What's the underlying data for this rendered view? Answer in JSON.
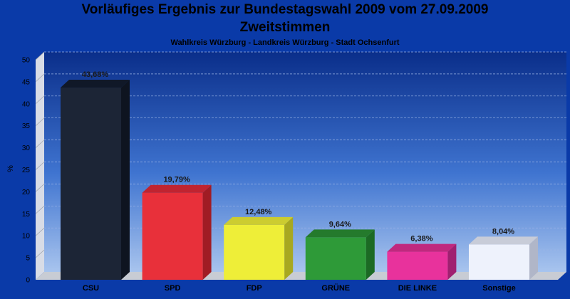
{
  "chart_data": {
    "type": "bar",
    "title": "Vorläufiges Ergebnis zur Bundestagswahl 2009 vom 27.09.2009",
    "title_line2": "Zweitstimmen",
    "subtitle": "Wahlkreis Würzburg - Landkreis Würzburg - Stadt Ochsenfurt",
    "ylabel": "%",
    "ylim": [
      0,
      50
    ],
    "yticks": [
      0,
      5,
      10,
      15,
      20,
      25,
      30,
      35,
      40,
      45,
      50
    ],
    "grid": true,
    "categories": [
      "CSU",
      "SPD",
      "FDP",
      "GRÜNE",
      "DIE LINKE",
      "Sonstige"
    ],
    "values": [
      43.68,
      19.79,
      12.48,
      9.64,
      6.38,
      8.04
    ],
    "value_labels": [
      "43,68%",
      "19,79%",
      "12,48%",
      "9,64%",
      "6,38%",
      "8,04%"
    ],
    "colors": [
      "#1c2536",
      "#e8303a",
      "#eeee38",
      "#2e9a38",
      "#e8329c",
      "#eef2fc"
    ],
    "side_colors": [
      "#0e1420",
      "#a01c24",
      "#a8a820",
      "#1c6a24",
      "#a02070",
      "#b0b6c8"
    ],
    "top_colors": [
      "#101828",
      "#c02430",
      "#cccc30",
      "#247a2c",
      "#c0287e",
      "#c8ccd8"
    ]
  }
}
